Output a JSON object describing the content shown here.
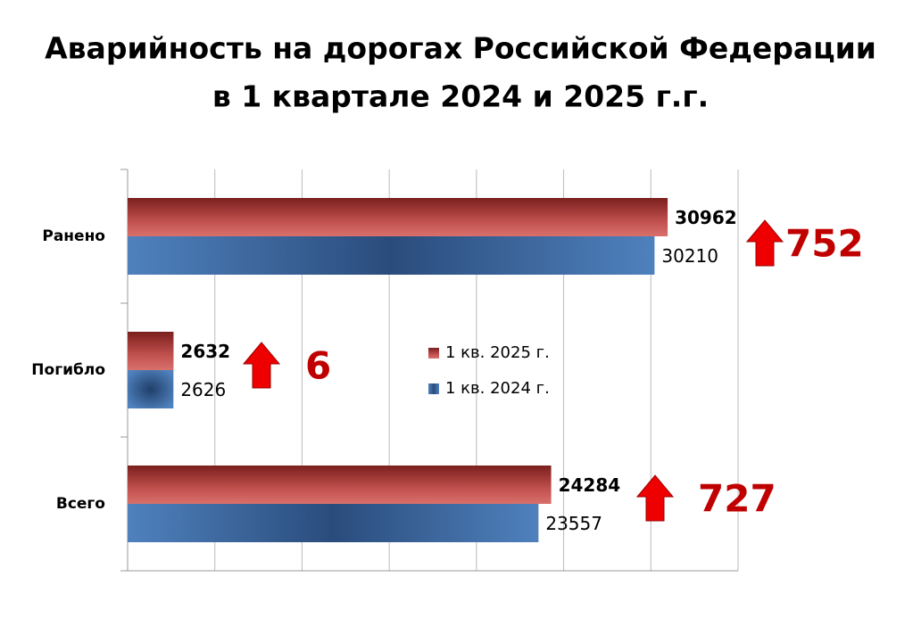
{
  "chart_data": {
    "type": "bar",
    "orientation": "horizontal",
    "title": "Аварийность на дорогах Российской Федерации",
    "subtitle": "в 1 квартале 2024 и 2025 г.г.",
    "categories": [
      "Ранено",
      "Погибло",
      "Всего"
    ],
    "series": [
      {
        "name": "1 кв. 2025 г.",
        "color": "#c0504d",
        "values": [
          30962,
          2632,
          24284
        ]
      },
      {
        "name": "1 кв. 2024 г.",
        "color": "#4f81bd",
        "values": [
          30210,
          2626,
          23557
        ]
      }
    ],
    "annotations": [
      "752",
      "6",
      "727"
    ],
    "xlim": [
      0,
      35000
    ],
    "xticks": [
      0,
      5000,
      10000,
      15000,
      20000,
      25000,
      30000,
      35000
    ],
    "grid": true
  }
}
